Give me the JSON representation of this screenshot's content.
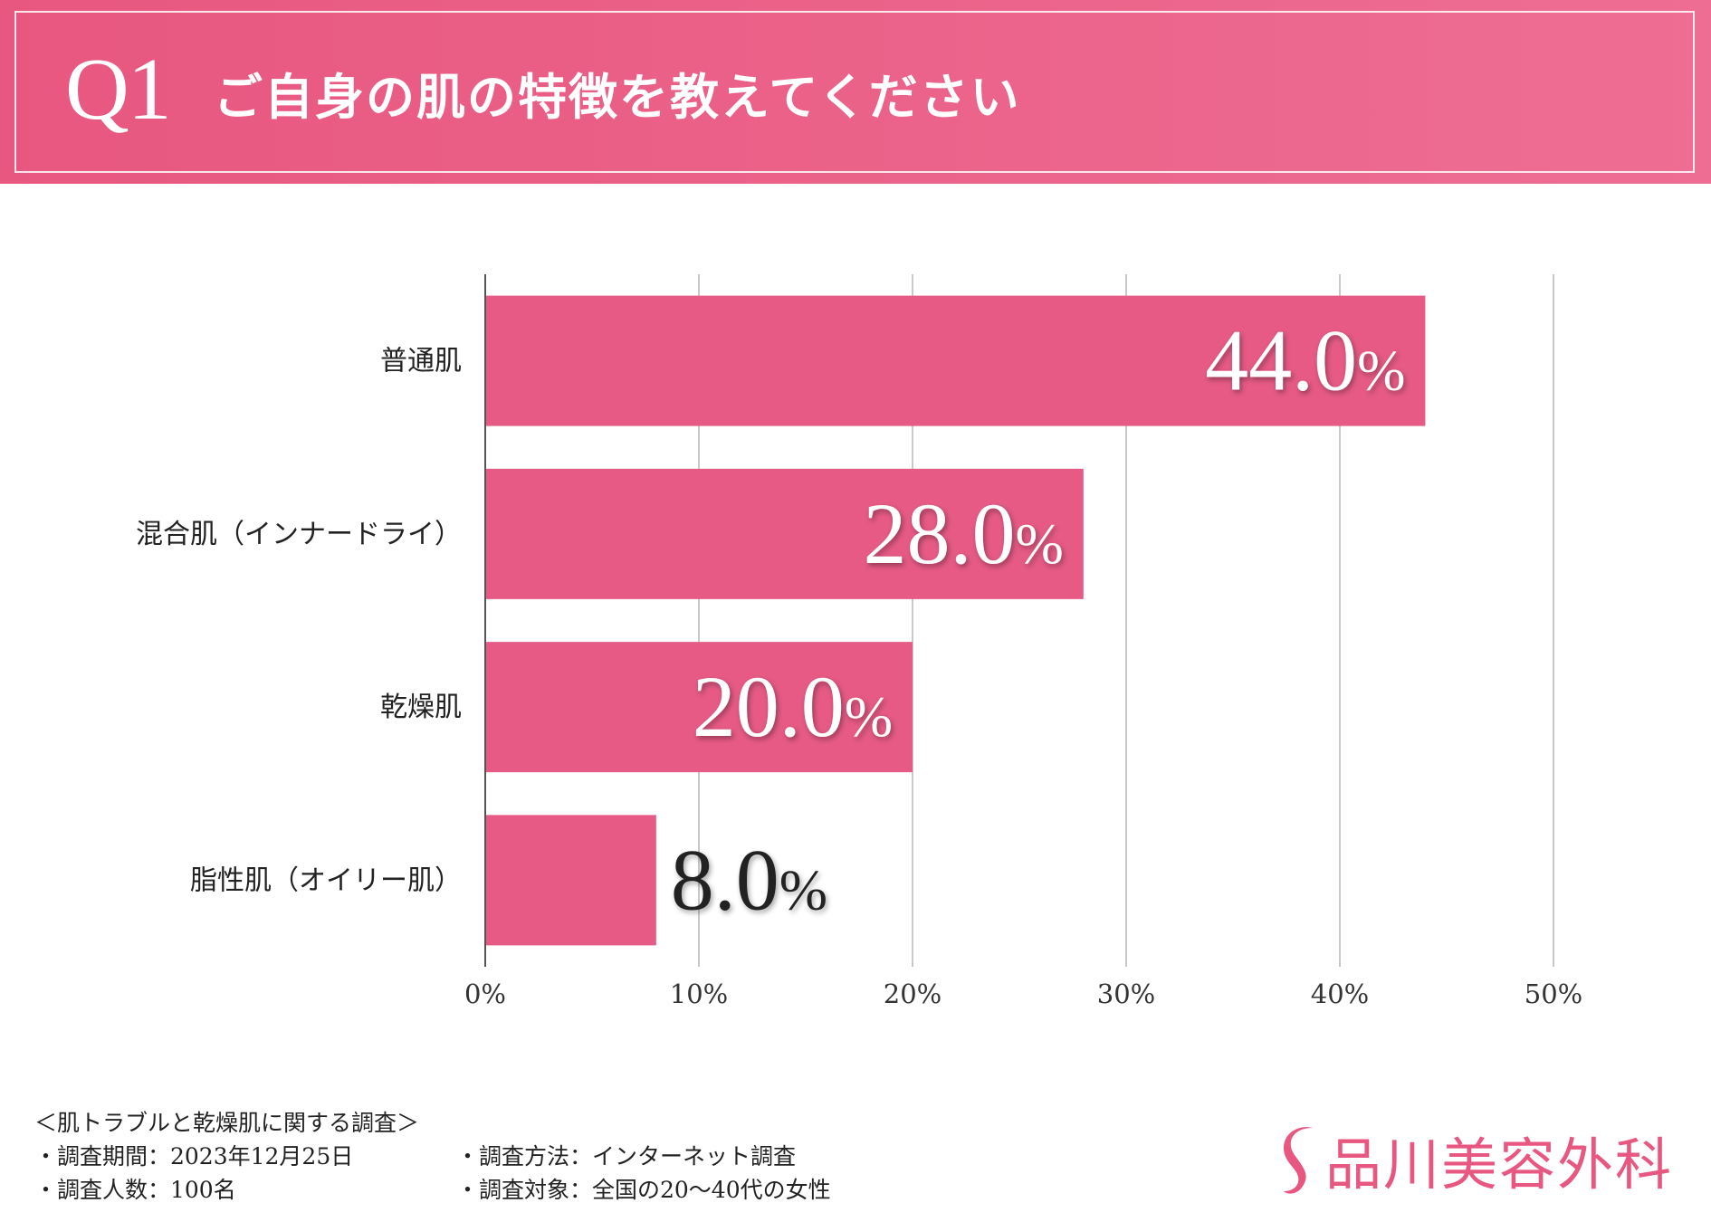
{
  "header": {
    "question_number": "Q1",
    "question_text": "ご自身の肌の特徴を教えてください"
  },
  "chart_data": {
    "type": "bar",
    "orientation": "horizontal",
    "title": "ご自身の肌の特徴を教えてください",
    "categories": [
      "普通肌",
      "混合肌（インナードライ）",
      "乾燥肌",
      "脂性肌（オイリー肌）"
    ],
    "values": [
      44.0,
      28.0,
      20.0,
      8.0
    ],
    "value_labels": [
      {
        "number": "44.0",
        "unit": "%"
      },
      {
        "number": "28.0",
        "unit": "%"
      },
      {
        "number": "20.0",
        "unit": "%"
      },
      {
        "number": "8.0",
        "unit": "%"
      }
    ],
    "xlim": [
      0,
      50
    ],
    "x_ticks": [
      "0%",
      "10%",
      "20%",
      "30%",
      "40%",
      "50%"
    ],
    "xlabel": "",
    "ylabel": "",
    "grid": true,
    "bar_color": "#e65a85"
  },
  "survey": {
    "title": "＜肌トラブルと乾燥肌に関する調査＞",
    "items": [
      "・調査期間：2023年12月25日",
      "・調査方法：インターネット調査",
      "・調査人数：100名",
      "・調査対象：全国の20〜40代の女性"
    ]
  },
  "logo": {
    "text": "品川美容外科",
    "color": "#e8577f",
    "icon": "s-swoosh-icon"
  },
  "colors": {
    "header_start": "#e8577f",
    "header_end": "#ee6d93"
  }
}
